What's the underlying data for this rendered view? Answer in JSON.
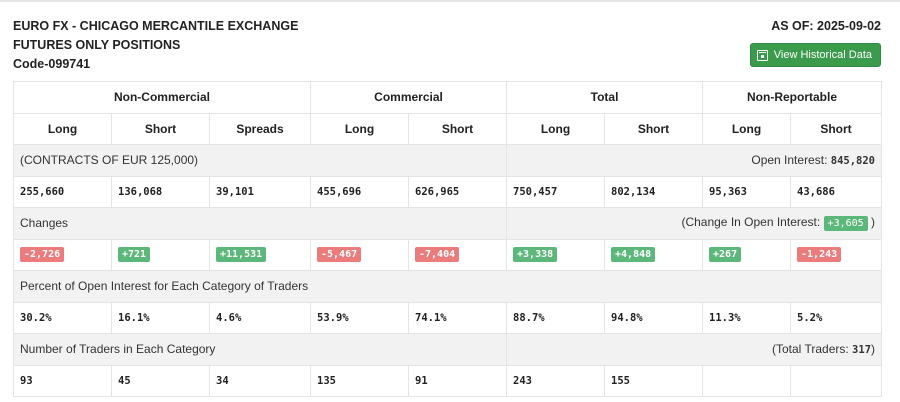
{
  "header": {
    "title_line1": "EURO FX - CHICAGO MERCANTILE EXCHANGE",
    "title_line2": "FUTURES ONLY POSITIONS",
    "code": "Code-099741",
    "as_of": "AS OF: 2025-09-02",
    "historical_button": "View Historical Data",
    "button_icon": "calendar-icon",
    "button_color": "#3b9b4c"
  },
  "groups": [
    "Non-Commercial",
    "Commercial",
    "Total",
    "Non-Reportable"
  ],
  "columns": [
    "Long",
    "Short",
    "Spreads",
    "Long",
    "Short",
    "Long",
    "Short",
    "Long",
    "Short"
  ],
  "contracts": {
    "label": "(CONTRACTS OF EUR 125,000)",
    "open_interest_label": "Open Interest:",
    "open_interest_value": "845,820",
    "values": [
      "255,660",
      "136,068",
      "39,101",
      "455,696",
      "626,965",
      "750,457",
      "802,134",
      "95,363",
      "43,686"
    ]
  },
  "changes": {
    "label": "Changes",
    "change_oi_prefix": "(Change In Open Interest:",
    "change_oi_value": "+3,605",
    "change_oi_suffix": ")",
    "values": [
      {
        "text": "-2,726",
        "sign": "neg"
      },
      {
        "text": "+721",
        "sign": "pos"
      },
      {
        "text": "+11,531",
        "sign": "pos"
      },
      {
        "text": "-5,467",
        "sign": "neg"
      },
      {
        "text": "-7,404",
        "sign": "neg"
      },
      {
        "text": "+3,338",
        "sign": "pos"
      },
      {
        "text": "+4,848",
        "sign": "pos"
      },
      {
        "text": "+267",
        "sign": "pos"
      },
      {
        "text": "-1,243",
        "sign": "neg"
      }
    ],
    "colors": {
      "positive": "#5cb87a",
      "negative": "#ec7b7b"
    }
  },
  "percent": {
    "label": "Percent of Open Interest for Each Category of Traders",
    "values": [
      "30.2%",
      "16.1%",
      "4.6%",
      "53.9%",
      "74.1%",
      "88.7%",
      "94.8%",
      "11.3%",
      "5.2%"
    ]
  },
  "traders": {
    "label": "Number of Traders in Each Category",
    "total_prefix": "(Total Traders:",
    "total_value": "317",
    "total_suffix": ")",
    "values": [
      "93",
      "45",
      "34",
      "135",
      "91",
      "243",
      "155",
      "",
      ""
    ]
  }
}
